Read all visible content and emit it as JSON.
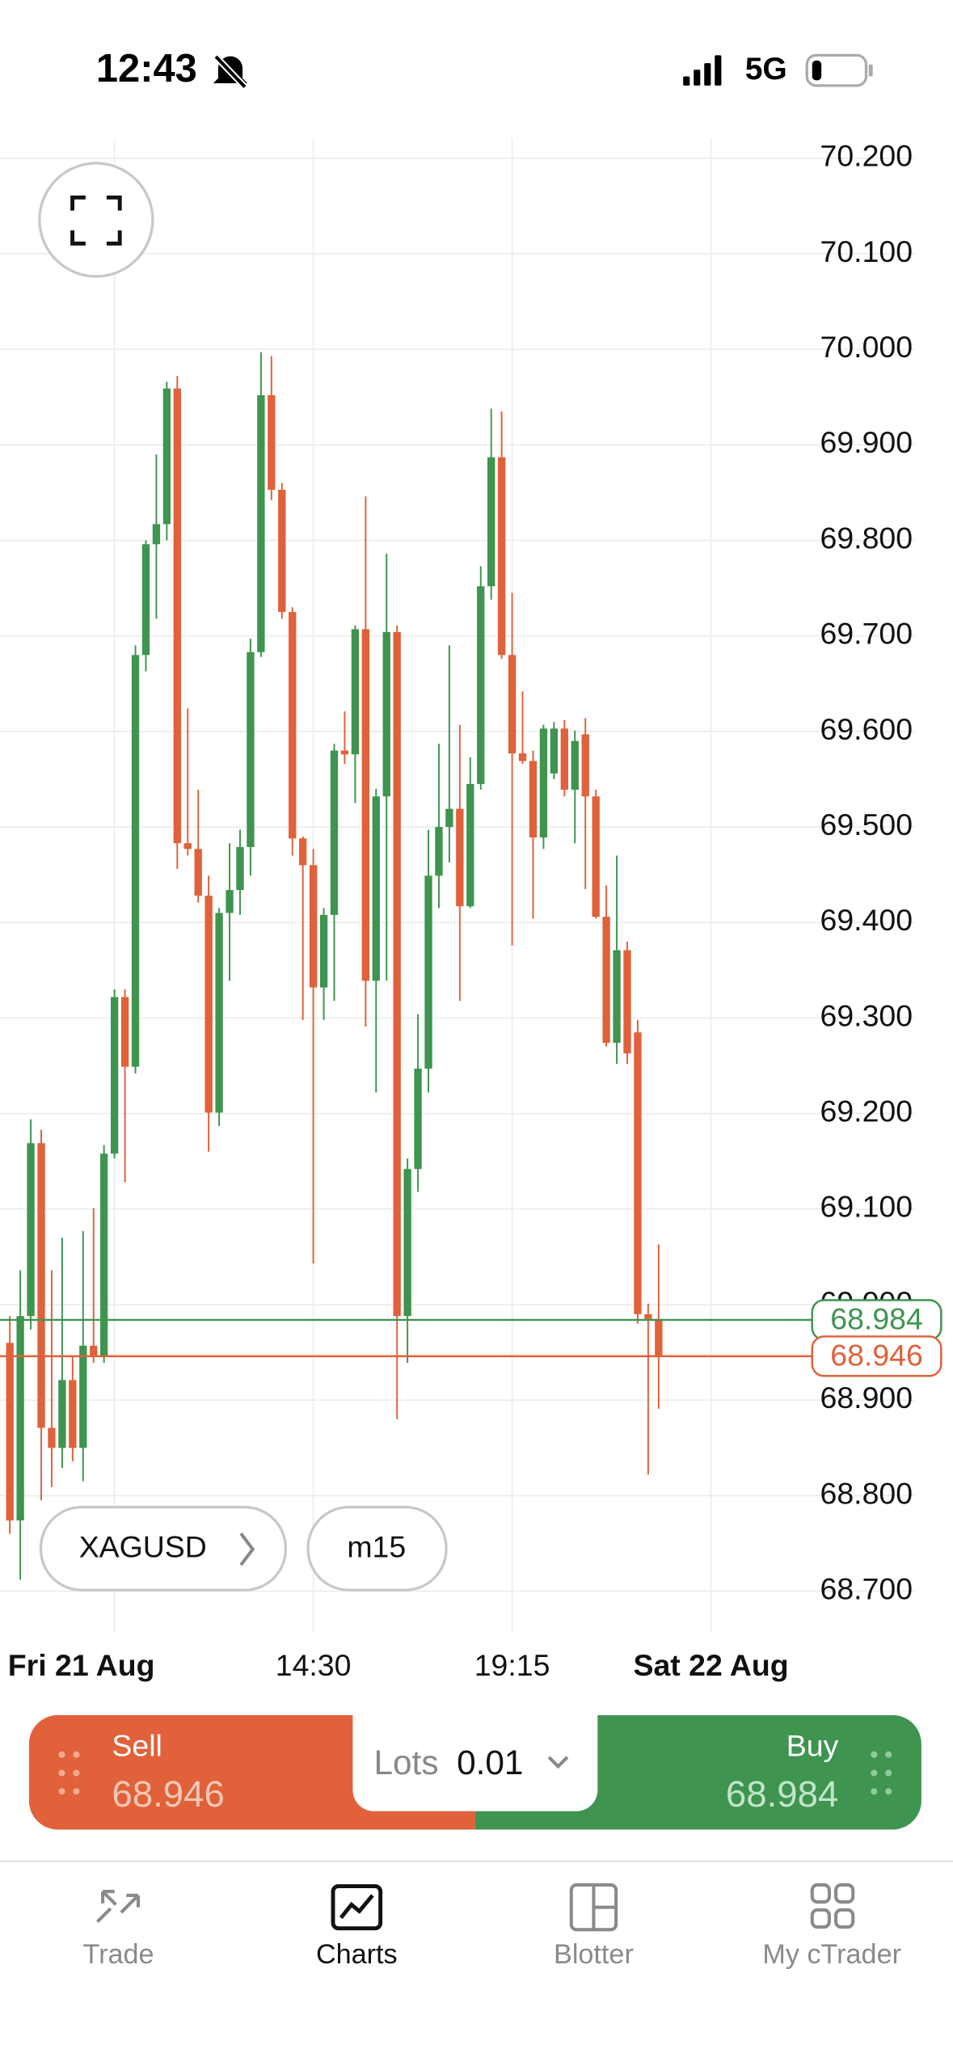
{
  "status_bar": {
    "time": "12:43",
    "network": "5G"
  },
  "chart_data": {
    "type": "candlestick",
    "open": [
      68.96,
      68.774,
      68.988,
      69.169,
      68.871,
      68.85,
      68.921,
      68.85,
      68.957,
      68.946,
      69.158,
      69.322,
      69.249,
      69.68,
      69.796,
      69.817,
      69.959,
      69.483,
      69.477,
      69.428,
      69.201,
      69.41,
      69.434,
      69.479,
      69.683,
      69.952,
      69.853,
      69.725,
      69.488,
      69.46,
      69.332,
      69.408,
      69.58,
      69.576,
      69.707,
      69.339,
      69.532,
      69.704,
      68.988,
      69.142,
      69.247,
      69.449,
      69.5,
      69.519,
      69.417,
      69.545,
      69.752,
      69.887,
      69.68,
      69.577,
      69.569,
      69.489,
      69.556,
      69.603,
      69.539,
      69.597,
      69.532,
      69.406,
      69.274,
      69.371,
      69.285,
      68.99,
      68.985
    ],
    "high": [
      68.988,
      69.036,
      69.194,
      69.183,
      69.036,
      69.07,
      68.946,
      69.077,
      69.101,
      69.167,
      69.33,
      69.33,
      69.69,
      69.8,
      69.89,
      69.966,
      69.972,
      69.624,
      69.539,
      69.449,
      69.415,
      69.483,
      69.497,
      69.697,
      69.997,
      69.993,
      69.86,
      69.73,
      69.49,
      69.477,
      69.415,
      69.587,
      69.621,
      69.711,
      69.846,
      69.54,
      69.786,
      69.711,
      69.153,
      69.304,
      69.497,
      69.587,
      69.69,
      69.607,
      69.573,
      69.773,
      69.938,
      69.935,
      69.745,
      69.642,
      69.58,
      69.607,
      69.61,
      69.612,
      69.601,
      69.614,
      69.539,
      69.439,
      69.47,
      69.38,
      69.298,
      69.001,
      69.063
    ],
    "low": [
      68.76,
      68.712,
      68.974,
      68.795,
      68.809,
      68.829,
      68.836,
      68.815,
      68.939,
      68.939,
      69.153,
      69.128,
      69.242,
      69.663,
      69.718,
      69.8,
      69.456,
      69.47,
      69.421,
      69.16,
      69.187,
      69.339,
      69.408,
      69.449,
      69.678,
      69.842,
      69.718,
      69.47,
      69.298,
      69.043,
      69.298,
      69.318,
      69.566,
      69.525,
      69.291,
      69.222,
      69.339,
      68.88,
      68.939,
      69.118,
      69.222,
      69.415,
      69.463,
      69.318,
      69.415,
      69.539,
      69.738,
      69.676,
      69.376,
      69.566,
      69.404,
      69.477,
      69.55,
      69.532,
      69.483,
      69.435,
      69.404,
      69.27,
      69.252,
      69.252,
      68.98,
      68.822,
      68.891
    ],
    "close": [
      68.774,
      68.988,
      69.169,
      68.871,
      68.85,
      68.921,
      68.85,
      68.957,
      68.946,
      69.158,
      69.322,
      69.249,
      69.68,
      69.796,
      69.817,
      69.959,
      69.483,
      69.477,
      69.428,
      69.201,
      69.41,
      69.434,
      69.479,
      69.683,
      69.952,
      69.853,
      69.725,
      69.488,
      69.46,
      69.332,
      69.408,
      69.58,
      69.576,
      69.707,
      69.339,
      69.532,
      69.704,
      68.988,
      69.142,
      69.247,
      69.449,
      69.5,
      69.519,
      69.417,
      69.545,
      69.752,
      69.887,
      69.68,
      69.577,
      69.569,
      69.489,
      69.603,
      69.603,
      69.539,
      69.59,
      69.532,
      69.406,
      69.274,
      69.371,
      69.263,
      68.99,
      68.985,
      68.946
    ],
    "up_color": "#3f9450",
    "down_color": "#e0613a",
    "ylim": [
      68.664,
      70.221
    ],
    "yticks": [
      {
        "value": 68.7,
        "label": "68.700"
      },
      {
        "value": 68.8,
        "label": "68.800"
      },
      {
        "value": 68.9,
        "label": "68.900"
      },
      {
        "value": 69.0,
        "label": "69.000"
      },
      {
        "value": 69.1,
        "label": "69.100"
      },
      {
        "value": 69.2,
        "label": "69.200"
      },
      {
        "value": 69.3,
        "label": "69.300"
      },
      {
        "value": 69.4,
        "label": "69.400"
      },
      {
        "value": 69.5,
        "label": "69.500"
      },
      {
        "value": 69.6,
        "label": "69.600"
      },
      {
        "value": 69.7,
        "label": "69.700"
      },
      {
        "value": 69.8,
        "label": "69.800"
      },
      {
        "value": 69.9,
        "label": "69.900"
      },
      {
        "value": 70.0,
        "label": "70.000"
      },
      {
        "value": 70.1,
        "label": "70.100"
      },
      {
        "value": 70.2,
        "label": "70.200"
      }
    ],
    "xlim": [
      -0.94,
      90.13
    ],
    "xticks": [
      {
        "value": 10,
        "label": "Fri 21 Aug"
      },
      {
        "value": 29,
        "label": "14:30"
      },
      {
        "value": 48,
        "label": "19:15"
      },
      {
        "value": 67,
        "label": "Sat 22 Aug"
      }
    ],
    "grid": true,
    "price_lines": [
      {
        "value": 68.984,
        "color": "#3f9450"
      },
      {
        "value": 68.946,
        "color": "#e0613a"
      }
    ]
  },
  "symbol": "XAGUSD",
  "timeframe": "m15",
  "trade_panel": {
    "sell": {
      "label": "Sell",
      "price": "68.946"
    },
    "lots": {
      "label": "Lots",
      "value": "0.01"
    },
    "buy": {
      "label": "Buy",
      "price": "68.984"
    }
  },
  "nav": [
    {
      "label": "Trade",
      "active": false
    },
    {
      "label": "Charts",
      "active": true
    },
    {
      "label": "Blotter",
      "active": false
    },
    {
      "label": "My cTrader",
      "active": false
    }
  ]
}
